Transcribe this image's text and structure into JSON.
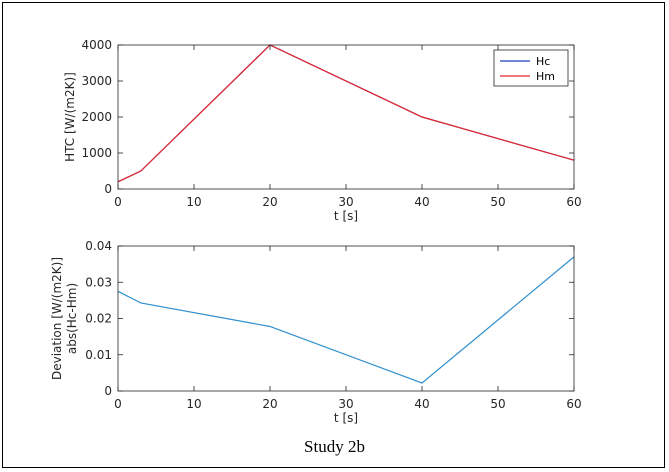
{
  "caption": "Study 2b",
  "colors": {
    "hc": "#1f3fbf",
    "hm": "#e8282b",
    "deviation": "#2e8fce",
    "axis": "#262626"
  },
  "chart_data": [
    {
      "type": "line",
      "title": "",
      "xlabel": "t [s]",
      "ylabel": "HTC [W/(m2K)]",
      "xlim": [
        0,
        60
      ],
      "ylim": [
        0,
        4000
      ],
      "xticks": [
        0,
        10,
        20,
        30,
        40,
        50,
        60
      ],
      "yticks": [
        0,
        1000,
        2000,
        3000,
        4000
      ],
      "legend_position": "top-right",
      "series": [
        {
          "name": "Hc",
          "color": "#1f3fbf",
          "x": [
            0,
            3,
            20,
            40,
            60
          ],
          "y": [
            200,
            500,
            4000,
            2000,
            800
          ]
        },
        {
          "name": "Hm",
          "color": "#e8282b",
          "x": [
            0,
            3,
            20,
            40,
            60
          ],
          "y": [
            200,
            500,
            4000,
            2000,
            800
          ]
        }
      ]
    },
    {
      "type": "line",
      "title": "",
      "xlabel": "t [s]",
      "ylabel": [
        "Deviation [W/(m2K)]",
        "abs(Hc-Hm)"
      ],
      "xlim": [
        0,
        60
      ],
      "ylim": [
        0,
        0.04
      ],
      "xticks": [
        0,
        10,
        20,
        30,
        40,
        50,
        60
      ],
      "yticks": [
        0,
        0.01,
        0.02,
        0.03,
        0.04
      ],
      "series": [
        {
          "color": "#2e8fce",
          "x": [
            0,
            3,
            20,
            40,
            60
          ],
          "y": [
            0.0275,
            0.0243,
            0.0178,
            0.0022,
            0.037
          ]
        }
      ]
    }
  ]
}
